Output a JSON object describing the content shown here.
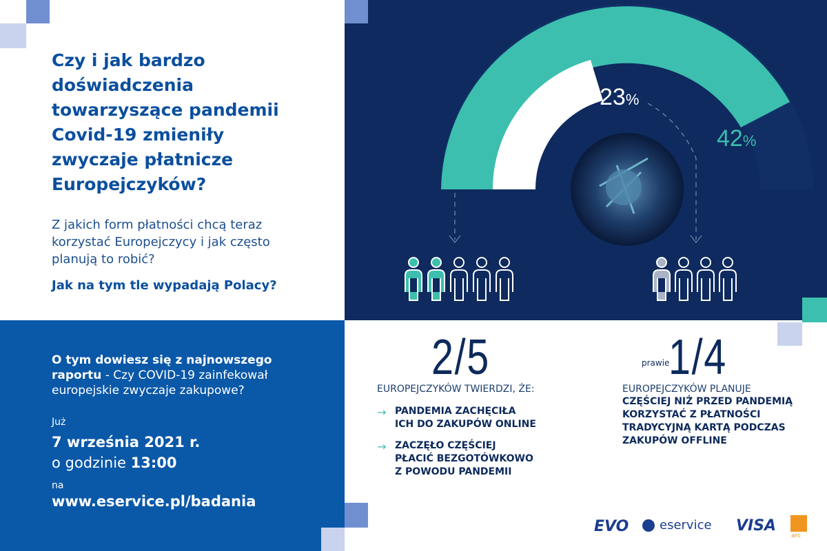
{
  "left_panel": {
    "title_lines": [
      "Czy i jak bardzo",
      "doświadczenia",
      "towarzyszące pandemii",
      "Covid-19 zmieniły",
      "zwyczaje płatnicze",
      "Europejczyków?"
    ],
    "subtitle_lines": [
      "Z jakich form płatności chcą teraz",
      "korzystać Europejczycy i jak często",
      "planują to robić?"
    ],
    "question": "Jak na tym tle wypadają Polacy?"
  },
  "info_panel": {
    "intro_bold": "O tym dowiesz się z najnowszego raportu",
    "intro_rest": " - Czy COVID-19 zainfekował europejskie zwyczaje zakupowe?",
    "when_label": "Już",
    "date": "7 września 2021 r.",
    "time_prefix": "o godzinie ",
    "time": "13:00",
    "where_label": "na",
    "url": "www.eservice.pl/badania"
  },
  "gauge": {
    "inner": {
      "number": "23",
      "unit": "%"
    },
    "outer": {
      "number": "42",
      "unit": "%"
    }
  },
  "stat_left": {
    "fraction": "2/5",
    "lead": "EUROPEJCZYKÓW TWIERDZI, ŻE:",
    "bullets": [
      [
        "PANDEMIA ZACHĘCIŁA",
        "ICH DO ZAKUPÓW ONLINE"
      ],
      [
        "ZACZĘŁO CZĘŚCIEJ",
        "PŁACIĆ BEZGOTÓWKOWO",
        "Z POWODU PANDEMII"
      ]
    ]
  },
  "stat_right": {
    "qualifier": "prawie",
    "fraction": "1/4",
    "lead": "EUROPEJCZYKÓW PLANUJE",
    "body_lines": [
      "CZĘŚCIEJ NIŻ PRZED PANDEMIĄ",
      "KORZYSTAĆ Z PŁATNOŚCI",
      "TRADYCYJNĄ KARTĄ PODCZAS",
      "ZAKUPÓW OFFLINE"
    ]
  },
  "logos": [
    "EVO",
    "eservice",
    "VISA",
    "arc"
  ]
}
